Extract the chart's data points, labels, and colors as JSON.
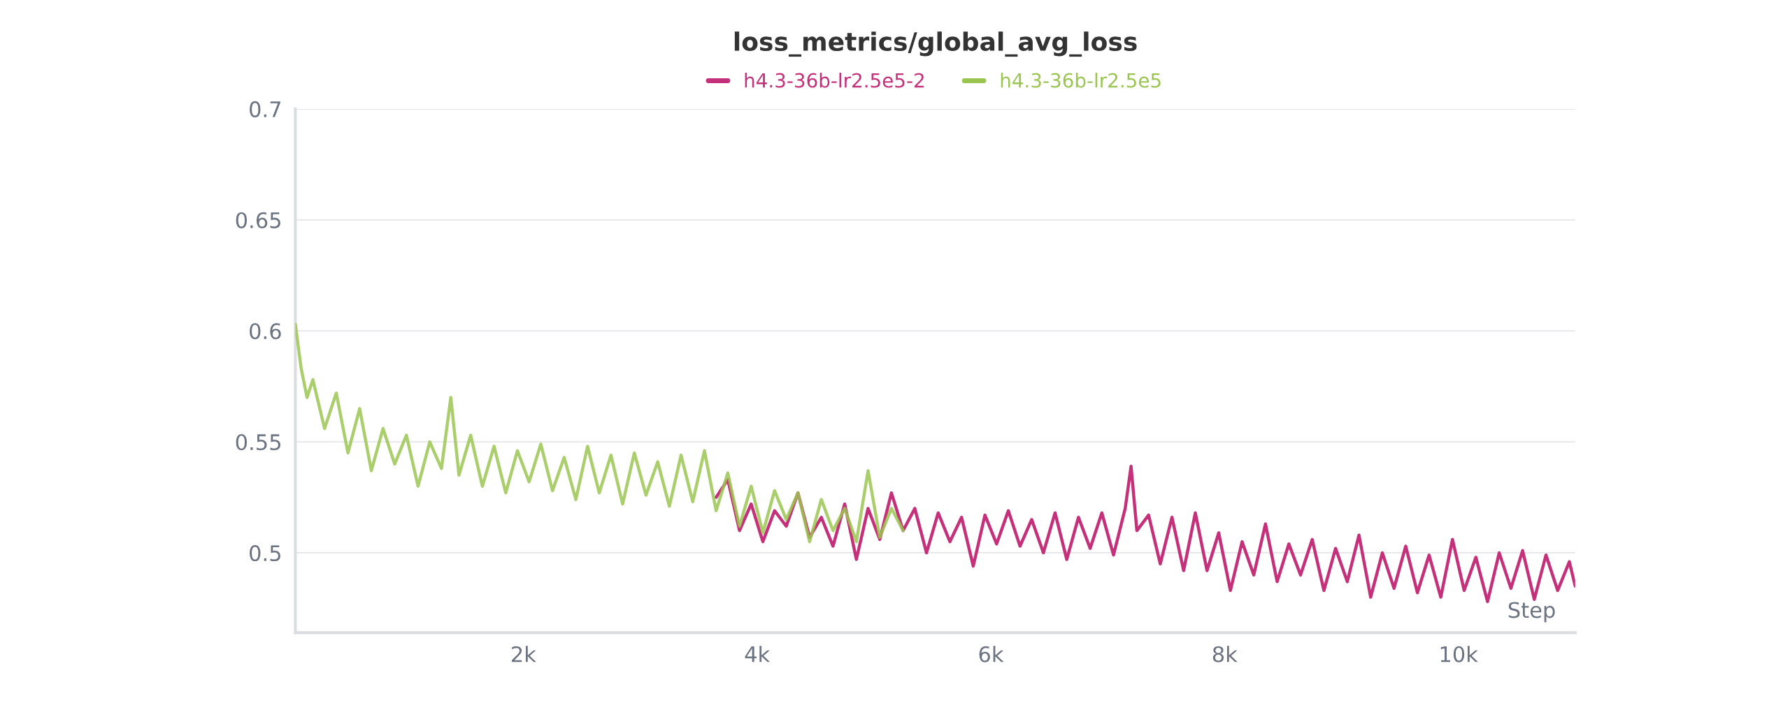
{
  "chart_data": {
    "type": "line",
    "title": "loss_metrics/global_avg_loss",
    "xlabel": "Step",
    "xlim": [
      50,
      11000
    ],
    "ylim": [
      0.464,
      0.7
    ],
    "xticks": [
      {
        "value": 2000,
        "label": "2k"
      },
      {
        "value": 4000,
        "label": "4k"
      },
      {
        "value": 6000,
        "label": "6k"
      },
      {
        "value": 8000,
        "label": "8k"
      },
      {
        "value": 10000,
        "label": "10k"
      }
    ],
    "yticks": [
      0.5,
      0.55,
      0.6,
      0.65,
      0.7
    ],
    "grid": "y",
    "legend": "top",
    "line_style": "solid",
    "series": [
      {
        "name": "h4.3-36b-lr2.5e5-2",
        "color": "#c5307a",
        "x": [
          3650,
          3750,
          3850,
          3950,
          4050,
          4150,
          4250,
          4350,
          4450,
          4550,
          4650,
          4750,
          4850,
          4950,
          5050,
          5150,
          5250,
          5350,
          5450,
          5550,
          5650,
          5750,
          5850,
          5950,
          6050,
          6150,
          6250,
          6350,
          6450,
          6550,
          6650,
          6750,
          6850,
          6950,
          7050,
          7150,
          7200,
          7250,
          7350,
          7450,
          7550,
          7650,
          7750,
          7850,
          7950,
          8050,
          8150,
          8250,
          8350,
          8450,
          8550,
          8650,
          8750,
          8850,
          8950,
          9050,
          9150,
          9250,
          9350,
          9450,
          9550,
          9650,
          9750,
          9850,
          9950,
          10050,
          10150,
          10250,
          10350,
          10450,
          10550,
          10650,
          10750,
          10850,
          10950,
          11000
        ],
        "values": [
          0.525,
          0.533,
          0.51,
          0.522,
          0.505,
          0.519,
          0.512,
          0.527,
          0.507,
          0.516,
          0.503,
          0.522,
          0.497,
          0.52,
          0.506,
          0.527,
          0.51,
          0.52,
          0.5,
          0.518,
          0.505,
          0.516,
          0.494,
          0.517,
          0.504,
          0.519,
          0.503,
          0.515,
          0.5,
          0.518,
          0.497,
          0.516,
          0.502,
          0.518,
          0.499,
          0.52,
          0.539,
          0.51,
          0.517,
          0.495,
          0.516,
          0.492,
          0.518,
          0.492,
          0.509,
          0.483,
          0.505,
          0.49,
          0.513,
          0.487,
          0.504,
          0.49,
          0.506,
          0.483,
          0.502,
          0.487,
          0.508,
          0.48,
          0.5,
          0.484,
          0.503,
          0.482,
          0.499,
          0.48,
          0.506,
          0.483,
          0.498,
          0.478,
          0.5,
          0.484,
          0.501,
          0.479,
          0.499,
          0.483,
          0.496,
          0.485
        ]
      },
      {
        "name": "h4.3-36b-lr2.5e5",
        "color": "#9bc551",
        "x": [
          50,
          100,
          150,
          200,
          300,
          400,
          500,
          600,
          700,
          800,
          900,
          1000,
          1100,
          1200,
          1300,
          1380,
          1450,
          1550,
          1650,
          1750,
          1850,
          1950,
          2050,
          2150,
          2250,
          2350,
          2450,
          2550,
          2650,
          2750,
          2850,
          2950,
          3050,
          3150,
          3250,
          3350,
          3450,
          3550,
          3650,
          3750,
          3850,
          3950,
          4050,
          4150,
          4250,
          4350,
          4450,
          4550,
          4650,
          4750,
          4850,
          4950,
          5050,
          5150,
          5250
        ],
        "values": [
          0.603,
          0.583,
          0.57,
          0.578,
          0.556,
          0.572,
          0.545,
          0.565,
          0.537,
          0.556,
          0.54,
          0.553,
          0.53,
          0.55,
          0.538,
          0.57,
          0.535,
          0.553,
          0.53,
          0.548,
          0.527,
          0.546,
          0.532,
          0.549,
          0.528,
          0.543,
          0.524,
          0.548,
          0.527,
          0.544,
          0.522,
          0.545,
          0.526,
          0.541,
          0.521,
          0.544,
          0.523,
          0.546,
          0.519,
          0.536,
          0.512,
          0.53,
          0.509,
          0.528,
          0.515,
          0.527,
          0.505,
          0.524,
          0.51,
          0.52,
          0.505,
          0.537,
          0.507,
          0.52,
          0.51
        ]
      }
    ]
  }
}
